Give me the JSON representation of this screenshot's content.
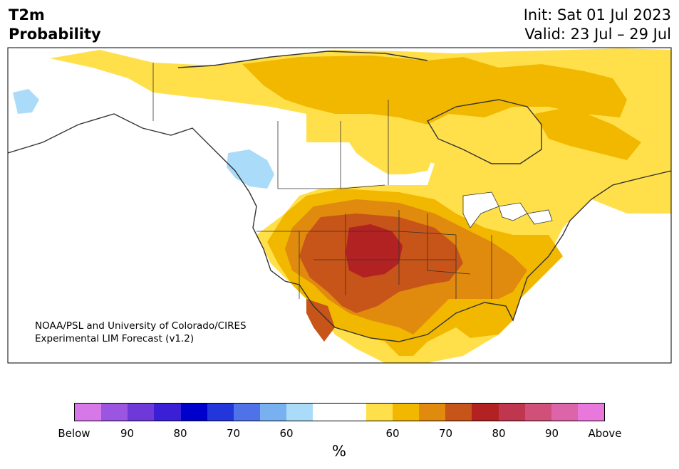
{
  "title": {
    "line1": "T2m",
    "line2": "Probability"
  },
  "valid": {
    "init": "Init: Sat 01 Jul 2023",
    "range": "Valid: 23 Jul – 29 Jul"
  },
  "credit": {
    "line1": "NOAA/PSL and University of Colorado/CIRES",
    "line2": "Experimental LIM Forecast (v1.2)"
  },
  "colorbar": {
    "colors": [
      "#d678e8",
      "#9c55e0",
      "#6f38d8",
      "#3b1fd6",
      "#0000cc",
      "#2236db",
      "#4f72e8",
      "#78b0f0",
      "#aadcfa",
      "#ffffff",
      "#ffffff",
      "#ffe04a",
      "#f2b800",
      "#e08a0e",
      "#c75418",
      "#b22222",
      "#c0364e",
      "#d0507a",
      "#dc64a8",
      "#e878dc"
    ],
    "tick_labels": [
      "Below",
      "90",
      "80",
      "70",
      "60",
      "60",
      "70",
      "80",
      "90",
      "Above"
    ],
    "unit": "%"
  },
  "map": {
    "region": "North America",
    "category_colors": {
      "above_50": "#ffe04a",
      "above_60": "#f2b800",
      "above_70": "#e08a0e",
      "above_80": "#c75418",
      "above_90": "#b22222",
      "below_50": "#aadcfa"
    }
  }
}
